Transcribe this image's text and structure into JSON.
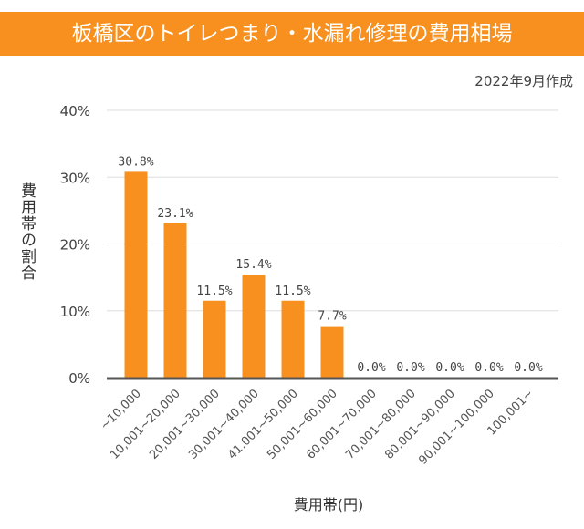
{
  "header": {
    "title": "板橋区のトイレつまり・水漏れ修理の費用相場",
    "date": "2022年9月作成"
  },
  "colors": {
    "banner": "#f7901e",
    "bar": "#f7901e",
    "axis": "#555555",
    "grid": "#dddddd"
  },
  "chart_data": {
    "type": "bar",
    "title": "板橋区のトイレつまり・水漏れ修理の費用相場",
    "xlabel": "費用帯(円)",
    "ylabel": "費用帯の割合",
    "ylim": [
      0,
      40
    ],
    "yticks": [
      "0%",
      "10%",
      "20%",
      "30%",
      "40%"
    ],
    "grid": true,
    "categories": [
      "~10,000",
      "10,001~20,000",
      "20,001~30,000",
      "30,001~40,000",
      "41,001~50,000",
      "50,001~60,000",
      "60,001~70,000",
      "70,001~80,000",
      "80,001~90,000",
      "90,001~100,000",
      "100,001~"
    ],
    "values": [
      30.8,
      23.1,
      11.5,
      15.4,
      11.5,
      7.7,
      0.0,
      0.0,
      0.0,
      0.0,
      0.0
    ],
    "data_labels": [
      "30.8%",
      "23.1%",
      "11.5%",
      "15.4%",
      "11.5%",
      "7.7%",
      "0.0%",
      "0.0%",
      "0.0%",
      "0.0%",
      "0.0%"
    ]
  }
}
